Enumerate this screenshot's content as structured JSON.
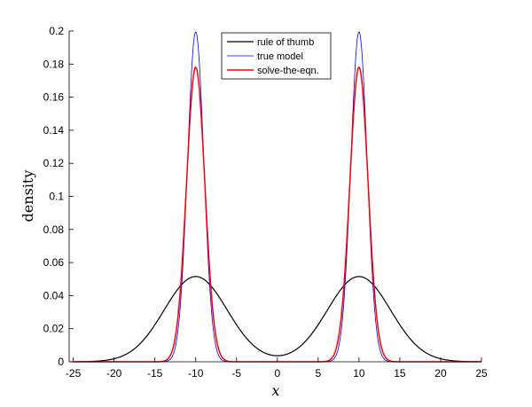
{
  "chart_data": {
    "type": "line",
    "title": "",
    "xlabel": "x",
    "ylabel": "density",
    "xlim": [
      -25.5,
      25
    ],
    "ylim": [
      0,
      0.2
    ],
    "xticks": [
      -25,
      -20,
      -15,
      -10,
      -5,
      0,
      5,
      10,
      15,
      20,
      25
    ],
    "yticks": [
      0,
      0.02,
      0.04,
      0.06,
      0.08,
      0.1,
      0.12,
      0.14,
      0.16,
      0.18,
      0.2
    ],
    "ytick_labels": [
      "0",
      "0.02",
      "0.04",
      "0.06",
      "0.08",
      "0.1",
      "0.12",
      "0.14",
      "0.16",
      "0.18",
      "0.2"
    ],
    "grid": false,
    "legend_position": "top-center",
    "series": [
      {
        "name": "rule of thumb",
        "color": "#000000",
        "model": "two-gaussian mixture",
        "means": [
          -10,
          10
        ],
        "sds": [
          3.87,
          3.87
        ],
        "weights": [
          0.5,
          0.5
        ],
        "peak_value": 0.0515,
        "value_at_0": 0.004
      },
      {
        "name": "true model",
        "color": "#0000ff",
        "model": "two-gaussian mixture",
        "means": [
          -10,
          10
        ],
        "sds": [
          1.0,
          1.0
        ],
        "weights": [
          0.5,
          0.5
        ],
        "peak_value": 0.2
      },
      {
        "name": "solve-the-eqn.",
        "color": "#ff0000",
        "model": "two-gaussian mixture",
        "means": [
          -10,
          10
        ],
        "sds": [
          1.12,
          1.12
        ],
        "weights": [
          0.5,
          0.5
        ],
        "peak_value": 0.178
      }
    ]
  }
}
